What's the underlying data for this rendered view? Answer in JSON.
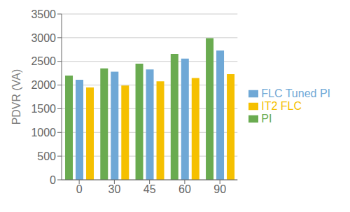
{
  "chart_data": {
    "type": "bar",
    "categories": [
      "0",
      "30",
      "45",
      "60",
      "90"
    ],
    "series": [
      {
        "name": "PI",
        "color": "#6aab50",
        "values": [
          2200,
          2350,
          2450,
          2660,
          2990
        ]
      },
      {
        "name": "FLC Tuned PI",
        "color": "#6fa8d6",
        "values": [
          2110,
          2280,
          2330,
          2560,
          2730
        ]
      },
      {
        "name": "IT2 FLC",
        "color": "#f5c000",
        "values": [
          1950,
          1990,
          2080,
          2150,
          2230
        ]
      }
    ],
    "ylabel": "PDVR (VA)",
    "ylim": [
      0,
      3500
    ],
    "yticks": [
      0,
      500,
      1000,
      1500,
      2000,
      2500,
      3000,
      3500
    ],
    "grid": true,
    "legend": "right"
  }
}
